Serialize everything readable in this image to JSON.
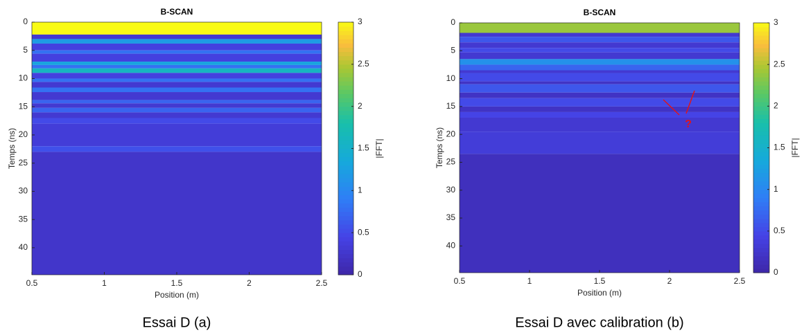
{
  "chart_data": [
    {
      "type": "heatmap",
      "title": "B-SCAN",
      "xlabel": "Position (m)",
      "ylabel": "Temps (ns)",
      "colorbar_label": "|FFT|",
      "caption": "Essai D (a)",
      "xlim": [
        0.5,
        2.5
      ],
      "xticks": [
        0.5,
        1,
        1.5,
        2,
        2.5
      ],
      "ylim": [
        0,
        44.8
      ],
      "y_reversed": true,
      "yticks": [
        0,
        5,
        10,
        15,
        20,
        25,
        30,
        35,
        40
      ],
      "clim": [
        0,
        3
      ],
      "cticks": [
        0,
        0.5,
        1,
        1.5,
        2,
        2.5,
        3
      ],
      "colormap": "parula",
      "ybins": [
        0,
        2.2,
        3,
        3.8,
        5,
        5.6,
        7,
        7.6,
        8.2,
        9,
        10,
        10.6,
        11.6,
        12.4,
        13.8,
        14.4,
        15.2,
        16,
        17,
        18,
        22,
        23,
        44.8
      ],
      "values": [
        3,
        0.3,
        1.2,
        0.4,
        0.8,
        0.4,
        1.3,
        0.8,
        1.6,
        0.4,
        0.8,
        0.3,
        0.8,
        0.3,
        0.7,
        0.3,
        0.7,
        0.3,
        0.5,
        0.35,
        0.55,
        0.25
      ]
    },
    {
      "type": "heatmap",
      "title": "B-SCAN",
      "xlabel": "Position (m)",
      "ylabel": "Temps (ns)",
      "colorbar_label": "|FFT|",
      "caption": "Essai D avec calibration (b)",
      "annotation": "?",
      "xlim": [
        0.5,
        2.5
      ],
      "xticks": [
        0.5,
        1,
        1.5,
        2,
        2.5
      ],
      "ylim": [
        0,
        44.8
      ],
      "y_reversed": true,
      "yticks": [
        0,
        5,
        10,
        15,
        20,
        25,
        30,
        35,
        40
      ],
      "clim": [
        0,
        3
      ],
      "cticks": [
        0,
        0.5,
        1,
        1.5,
        2,
        2.5,
        3
      ],
      "colormap": "parula",
      "ybins": [
        0,
        1.8,
        2.5,
        3.5,
        4.5,
        5.3,
        6.5,
        7.5,
        8.5,
        9,
        10.5,
        11,
        12.5,
        13.5,
        15,
        16,
        17,
        19.5,
        23.5,
        44.8
      ],
      "values": [
        2.4,
        0.3,
        0.6,
        0.3,
        0.5,
        0.3,
        1.1,
        0.7,
        0.3,
        0.5,
        0.2,
        0.6,
        0.2,
        0.5,
        0.2,
        0.45,
        0.3,
        0.35,
        0.15
      ]
    }
  ]
}
